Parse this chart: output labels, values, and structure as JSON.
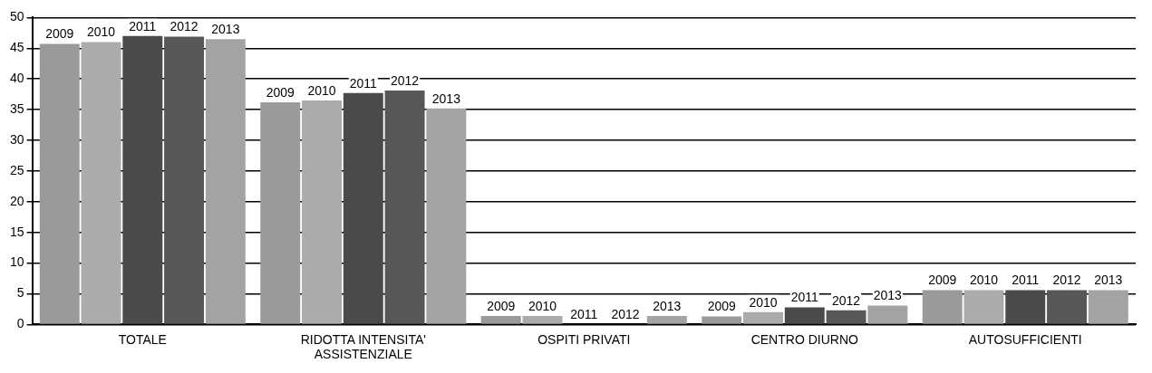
{
  "chart_data": {
    "type": "bar",
    "categories": [
      "TOTALE",
      "RIDOTTA INTENSITA' ASSISTENZIALE",
      "OSPITI PRIVATI",
      "CENTRO DIURNO",
      "AUTOSUFFICIENTI"
    ],
    "series": [
      {
        "name": "2009",
        "color": "#9a9a9a",
        "values": [
          45.7,
          36.2,
          1.4,
          1.3,
          5.6
        ]
      },
      {
        "name": "2010",
        "color": "#ababab",
        "values": [
          46.0,
          36.5,
          1.4,
          2.0,
          5.6
        ]
      },
      {
        "name": "2011",
        "color": "#4a4a4a",
        "values": [
          47.0,
          37.7,
          0,
          2.8,
          5.6
        ]
      },
      {
        "name": "2012",
        "color": "#575757",
        "values": [
          46.9,
          38.1,
          0,
          2.3,
          5.6
        ]
      },
      {
        "name": "2013",
        "color": "#a3a3a3",
        "values": [
          46.5,
          35.2,
          1.4,
          3.1,
          5.6
        ]
      }
    ],
    "ylim": [
      0,
      50
    ],
    "yticks": [
      0,
      5,
      10,
      15,
      20,
      25,
      30,
      35,
      40,
      45,
      50
    ],
    "grid": "y",
    "legend": false
  }
}
